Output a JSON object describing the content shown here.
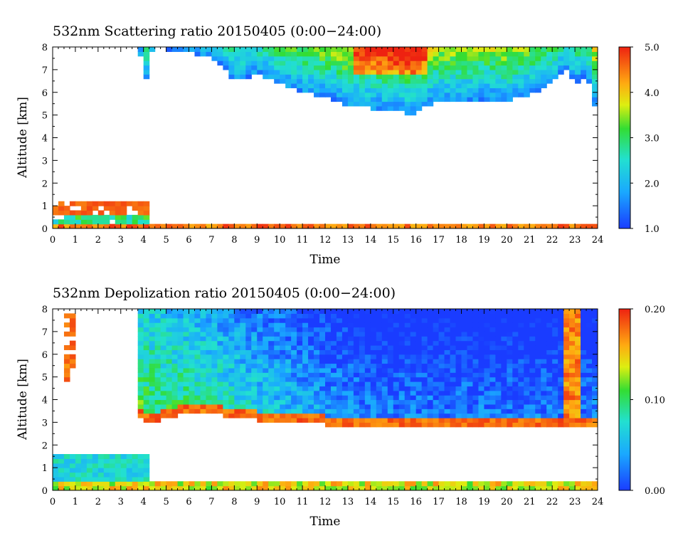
{
  "chart_data": [
    {
      "type": "heatmap",
      "title": "532nm Scattering ratio  20150405 (0:00−24:00)",
      "xlabel": "Time",
      "ylabel": "Altitude [km]",
      "xlim": [
        0,
        24
      ],
      "ylim": [
        0,
        8
      ],
      "x_ticks": [
        "0",
        "1",
        "2",
        "3",
        "4",
        "5",
        "6",
        "7",
        "8",
        "9",
        "10",
        "11",
        "12",
        "13",
        "14",
        "15",
        "16",
        "17",
        "18",
        "19",
        "20",
        "21",
        "22",
        "23",
        "24"
      ],
      "y_ticks": [
        "0",
        "1",
        "2",
        "3",
        "4",
        "5",
        "6",
        "7",
        "8"
      ],
      "colorbar": {
        "min": 1.0,
        "max": 5.0,
        "ticks": [
          "1.0",
          "2.0",
          "3.0",
          "4.0",
          "5.0"
        ],
        "tick_values": [
          1.0,
          2.0,
          3.0,
          4.0,
          5.0
        ]
      },
      "features": {
        "surface_layer_top_km": 0.25,
        "low_aerosol": [
          {
            "x0": 0.0,
            "x1": 4.2,
            "top_km": 1.3,
            "value": 2.8
          }
        ],
        "upper_cloud_base_km": [
          [
            0.0,
            8.0
          ],
          [
            3.7,
            8.0
          ],
          [
            4.0,
            7.2
          ],
          [
            4.2,
            6.2
          ],
          [
            4.4,
            8.0
          ],
          [
            7.0,
            7.6
          ],
          [
            8.0,
            6.5
          ],
          [
            9.0,
            6.8
          ],
          [
            10.0,
            6.4
          ],
          [
            11.0,
            6.0
          ],
          [
            12.0,
            5.8
          ],
          [
            13.0,
            5.4
          ],
          [
            14.0,
            5.3
          ],
          [
            15.0,
            5.2
          ],
          [
            15.8,
            5.0
          ],
          [
            16.5,
            5.4
          ],
          [
            17.0,
            5.7
          ],
          [
            18.0,
            5.6
          ],
          [
            19.0,
            5.7
          ],
          [
            20.0,
            5.6
          ],
          [
            21.0,
            5.9
          ],
          [
            22.0,
            6.4
          ],
          [
            22.7,
            7.0
          ],
          [
            23.0,
            6.3
          ],
          [
            23.5,
            6.8
          ],
          [
            23.9,
            5.3
          ],
          [
            24.0,
            6.0
          ]
        ]
      }
    },
    {
      "type": "heatmap",
      "title": "532nm Depolization ratio  20150405 (0:00−24:00)",
      "xlabel": "Time",
      "ylabel": "Altitude [km]",
      "xlim": [
        0,
        24
      ],
      "ylim": [
        0,
        8
      ],
      "x_ticks": [
        "0",
        "1",
        "2",
        "3",
        "4",
        "5",
        "6",
        "7",
        "8",
        "9",
        "10",
        "11",
        "12",
        "13",
        "14",
        "15",
        "16",
        "17",
        "18",
        "19",
        "20",
        "21",
        "22",
        "23",
        "24"
      ],
      "y_ticks": [
        "0",
        "1",
        "2",
        "3",
        "4",
        "5",
        "6",
        "7",
        "8"
      ],
      "colorbar": {
        "min": 0.0,
        "max": 0.2,
        "ticks": [
          "0.00",
          "0.10",
          "0.20"
        ],
        "tick_values": [
          0.0,
          0.1,
          0.2
        ]
      },
      "features": {
        "surface_layer_top_km": 0.4,
        "low_layer": [
          {
            "x0": 0.0,
            "x1": 4.2,
            "top_km": 1.6,
            "value": 0.06
          }
        ],
        "dust_layer_base_km": [
          [
            3.8,
            3.2
          ],
          [
            4.2,
            2.9
          ],
          [
            5.0,
            3.2
          ],
          [
            6.0,
            3.4
          ],
          [
            7.0,
            3.4
          ],
          [
            8.0,
            3.2
          ],
          [
            10.0,
            3.0
          ],
          [
            12.0,
            2.9
          ],
          [
            14.0,
            2.9
          ],
          [
            16.0,
            2.8
          ],
          [
            18.0,
            2.8
          ],
          [
            20.0,
            2.8
          ],
          [
            22.0,
            2.8
          ],
          [
            23.0,
            2.8
          ],
          [
            24.0,
            2.9
          ]
        ]
      }
    }
  ]
}
